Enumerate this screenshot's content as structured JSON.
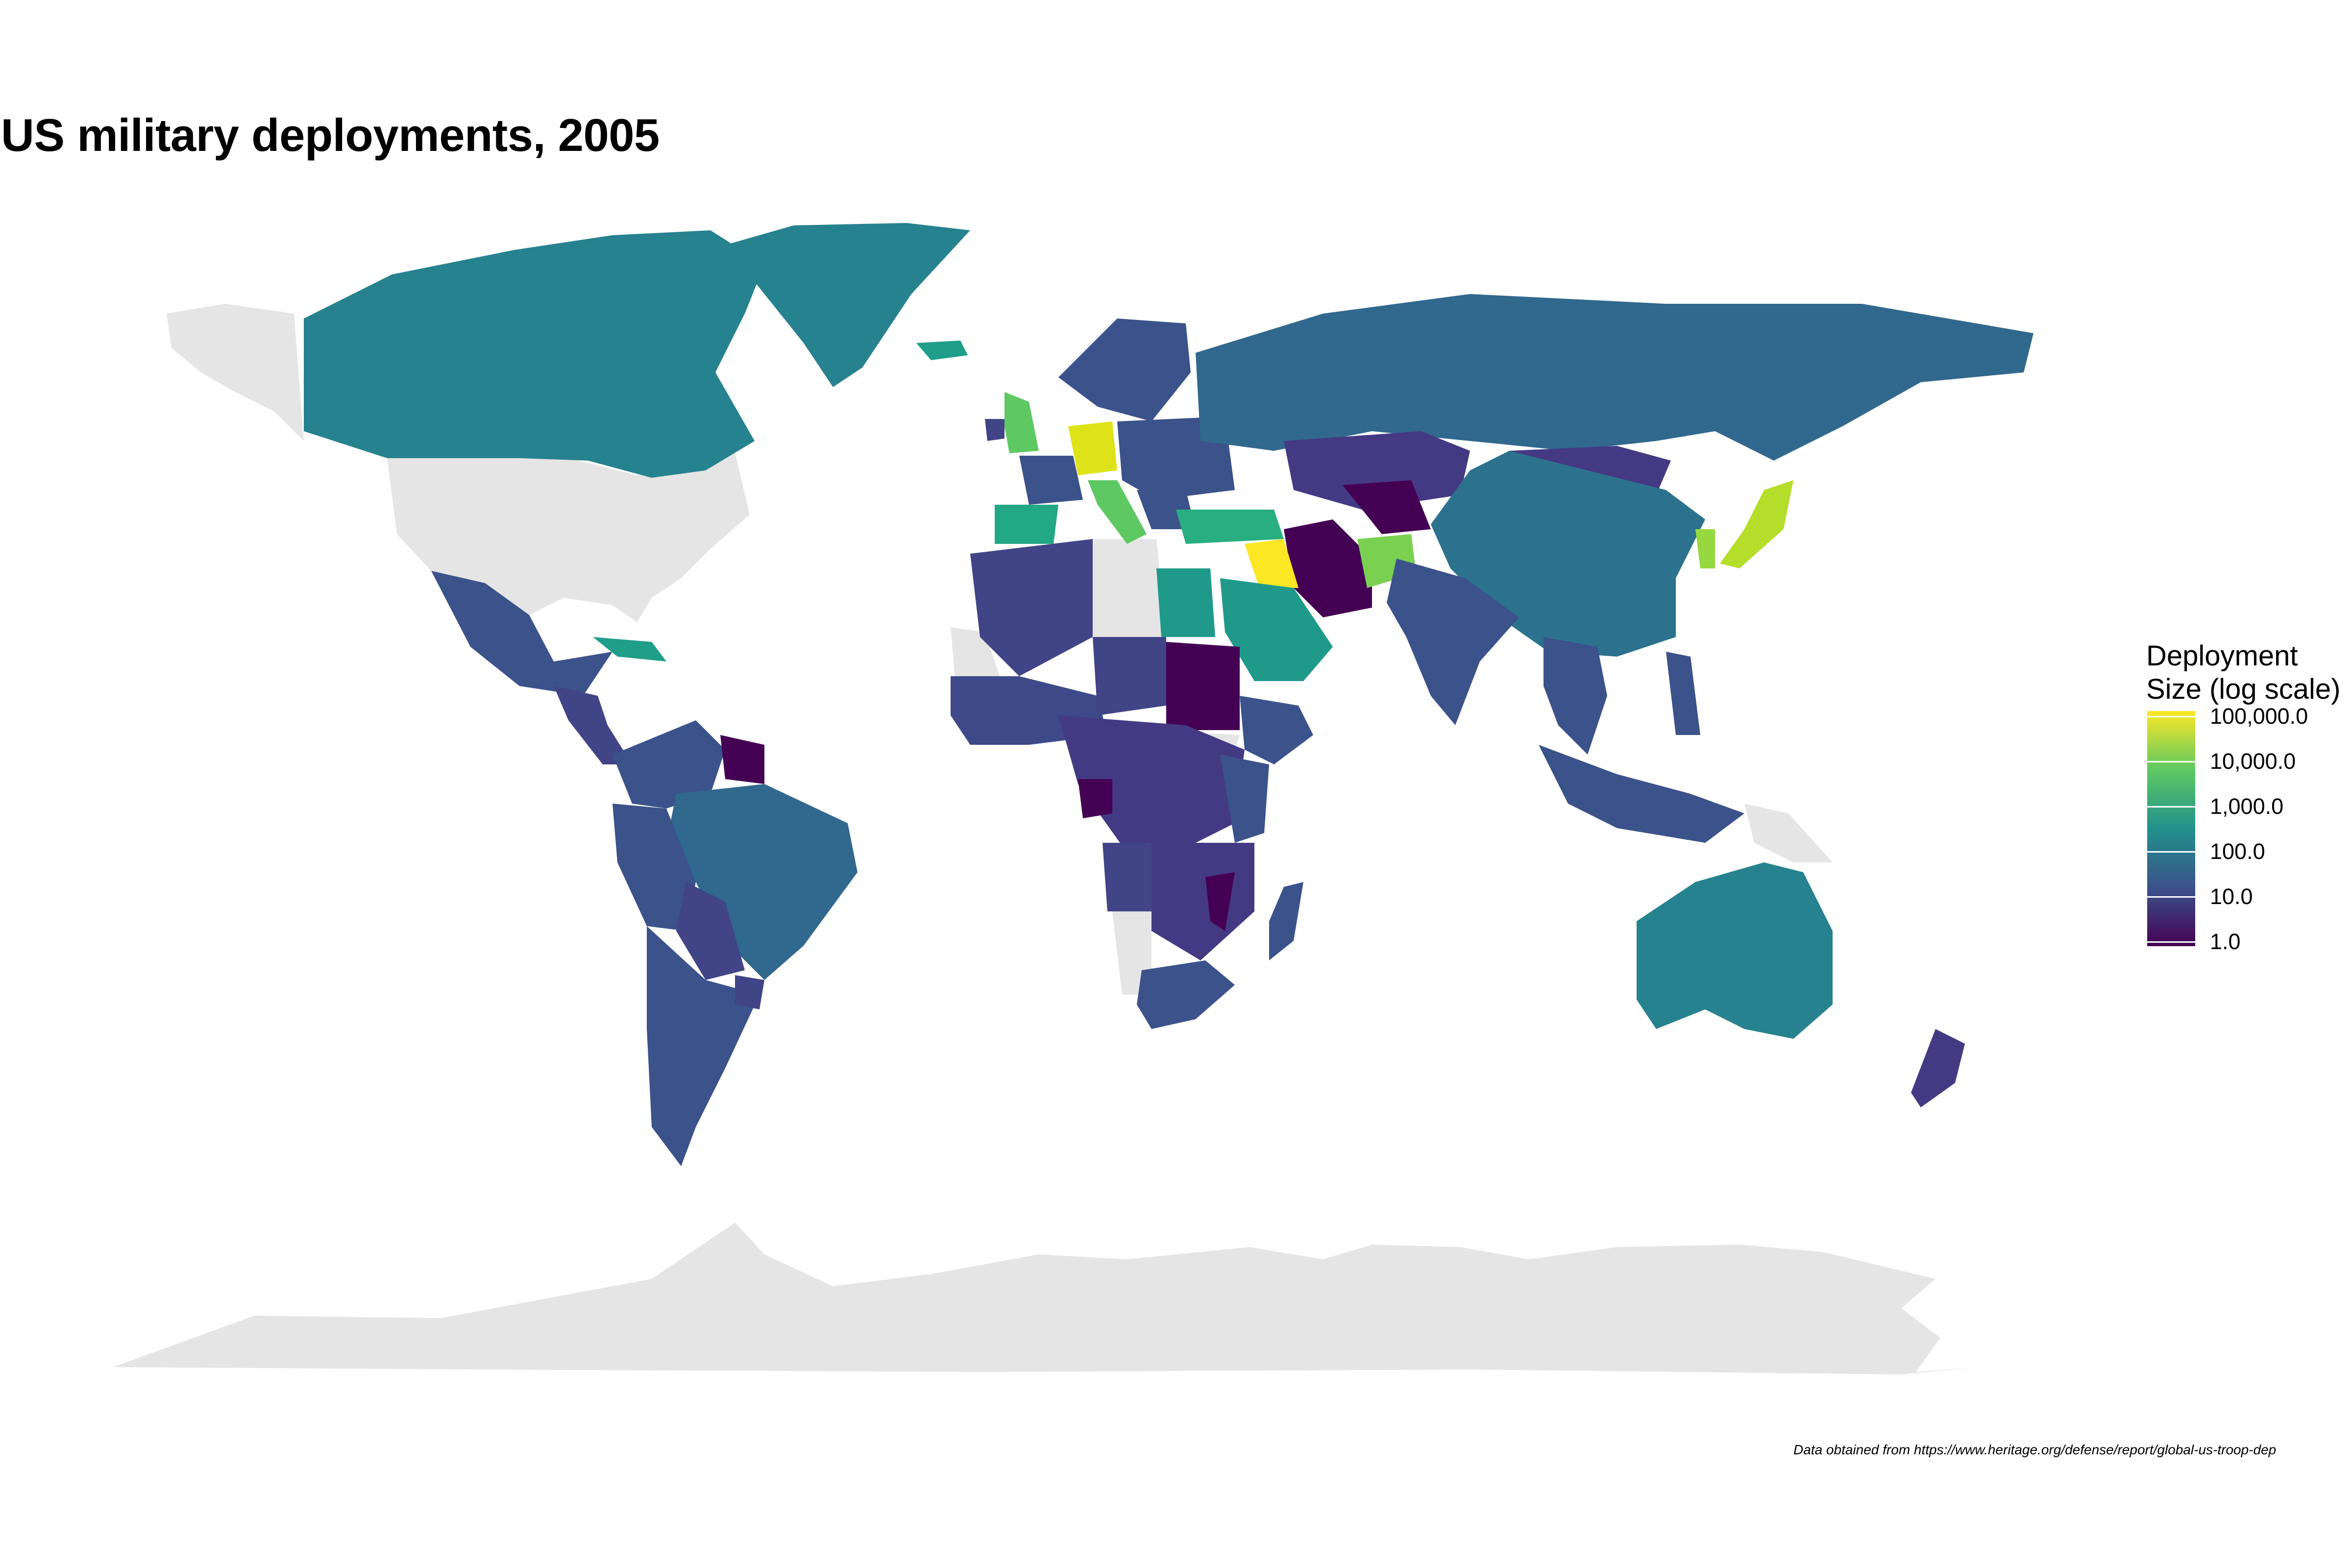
{
  "title": "US military deployments, 2005",
  "legend": {
    "title": "Deployment\nSize (log scale)",
    "scale": "log10",
    "palette": "viridis",
    "colors": [
      "#440154",
      "#3b528b",
      "#21918c",
      "#5ec962",
      "#fde725"
    ],
    "no_data_color": "#e5e5e5",
    "ticks": [
      "100,000.0",
      "10,000.0",
      "1,000.0",
      "100.0",
      "10.0",
      "1.0"
    ]
  },
  "caption": "Data obtained from https://www.heritage.org/defense/report/global-us-troop-dep",
  "chart_data": {
    "type": "choropleth",
    "title": "US military deployments, 2005",
    "value_label": "Deployment Size (log scale)",
    "scale": "log10",
    "range": [
      1,
      100000
    ],
    "regions": [
      {
        "name": "Germany",
        "value": 70000
      },
      {
        "name": "Iraq",
        "value": 100000
      },
      {
        "name": "Japan",
        "value": 35000
      },
      {
        "name": "South Korea",
        "value": 30000
      },
      {
        "name": "Afghanistan",
        "value": 18000
      },
      {
        "name": "Italy",
        "value": 11000
      },
      {
        "name": "United Kingdom",
        "value": 11000
      },
      {
        "name": "Spain",
        "value": 1500
      },
      {
        "name": "Turkey",
        "value": 1800
      },
      {
        "name": "Iceland",
        "value": 1300
      },
      {
        "name": "Cuba",
        "value": 900
      },
      {
        "name": "Saudi Arabia",
        "value": 400
      },
      {
        "name": "Egypt",
        "value": 400
      },
      {
        "name": "Canada",
        "value": 150
      },
      {
        "name": "Greenland",
        "value": 150
      },
      {
        "name": "Australia",
        "value": 200
      },
      {
        "name": "China",
        "value": 60
      },
      {
        "name": "Russia",
        "value": 40
      },
      {
        "name": "Brazil",
        "value": 35
      },
      {
        "name": "India",
        "value": 25
      },
      {
        "name": "Mexico",
        "value": 20
      },
      {
        "name": "Mongolia",
        "value": 8
      },
      {
        "name": "Kazakhstan",
        "value": 8
      },
      {
        "name": "Argentina",
        "value": 20
      },
      {
        "name": "Iran",
        "value": 1
      },
      {
        "name": "Madagascar",
        "value": 3
      },
      {
        "name": "Gabon",
        "value": 1
      },
      {
        "name": "New Zealand",
        "value": 10
      }
    ]
  }
}
